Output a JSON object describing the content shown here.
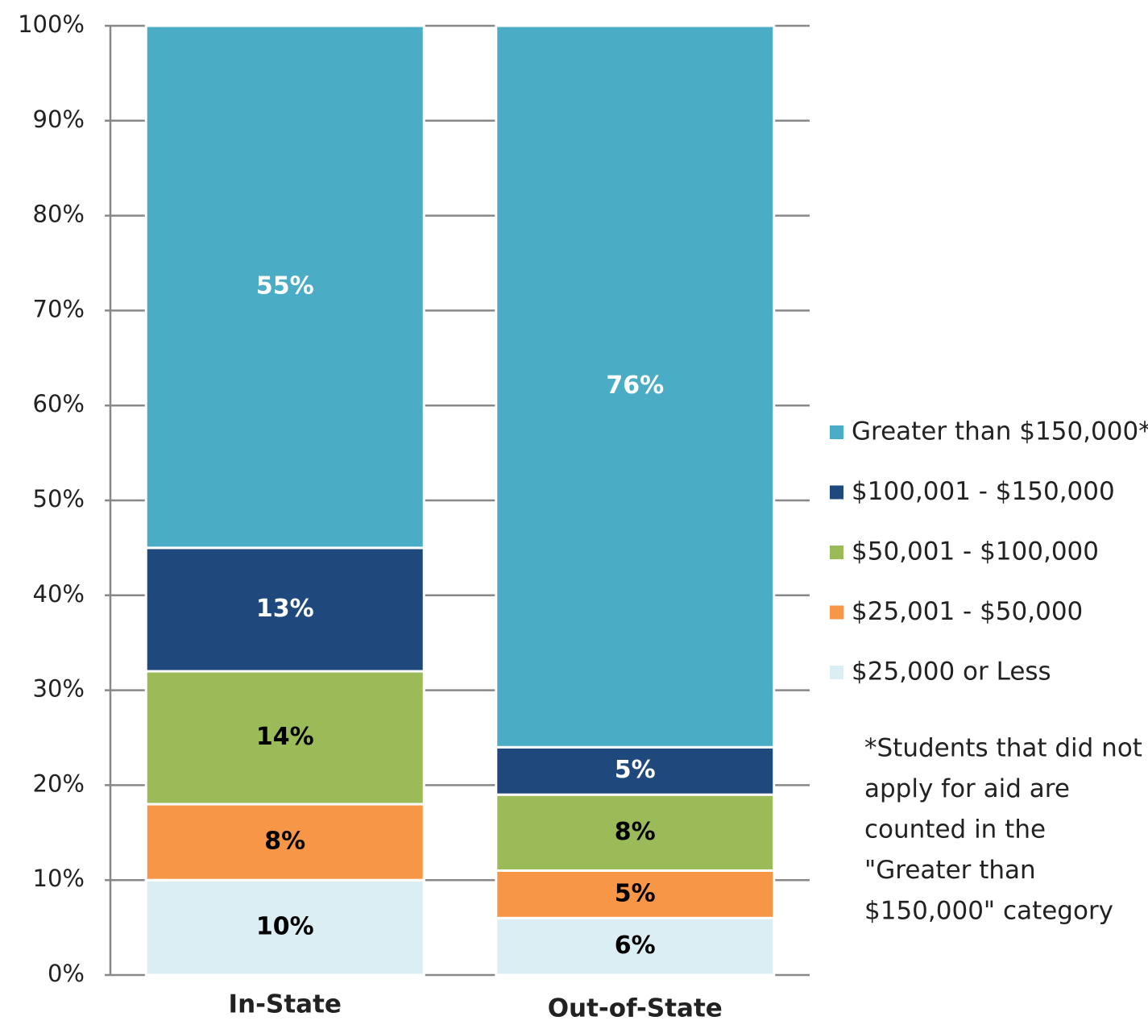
{
  "chart_data": {
    "type": "stacked_bar",
    "categories": [
      "In-State",
      "Out-of-State"
    ],
    "series": [
      {
        "name": "$25,000 or Less",
        "color": "#dbeef4",
        "label_color": "#000000",
        "values": [
          10,
          6
        ],
        "value_labels": [
          "10%",
          "6%"
        ]
      },
      {
        "name": "$25,001 - $50,000",
        "color": "#f79646",
        "label_color": "#000000",
        "values": [
          8,
          5
        ],
        "value_labels": [
          "8%",
          "5%"
        ]
      },
      {
        "name": "$50,001 - $100,000",
        "color": "#9bbb59",
        "label_color": "#000000",
        "values": [
          14,
          8
        ],
        "value_labels": [
          "14%",
          "8%"
        ]
      },
      {
        "name": "$100,001 - $150,000",
        "color": "#1f497d",
        "label_color": "#ffffff",
        "values": [
          13,
          5
        ],
        "value_labels": [
          "13%",
          "5%"
        ]
      },
      {
        "name": "Greater than $150,000*",
        "color": "#4bacc6",
        "label_color": "#ffffff",
        "values": [
          55,
          76
        ],
        "value_labels": [
          "55%",
          "76%"
        ]
      }
    ],
    "ylim": [
      0,
      100
    ],
    "yticks": [
      {
        "value": 0,
        "label": "0%"
      },
      {
        "value": 10,
        "label": "10%"
      },
      {
        "value": 20,
        "label": "20%"
      },
      {
        "value": 30,
        "label": "30%"
      },
      {
        "value": 40,
        "label": "40%"
      },
      {
        "value": 50,
        "label": "50%"
      },
      {
        "value": 60,
        "label": "60%"
      },
      {
        "value": 70,
        "label": "70%"
      },
      {
        "value": 80,
        "label": "80%"
      },
      {
        "value": 90,
        "label": "90%"
      },
      {
        "value": 100,
        "label": "100%"
      }
    ],
    "grid": true,
    "legend": "right",
    "note": [
      "*Students that did not",
      "apply for aid are",
      "counted in the",
      "\"Greater than",
      "$150,000\" category"
    ]
  }
}
